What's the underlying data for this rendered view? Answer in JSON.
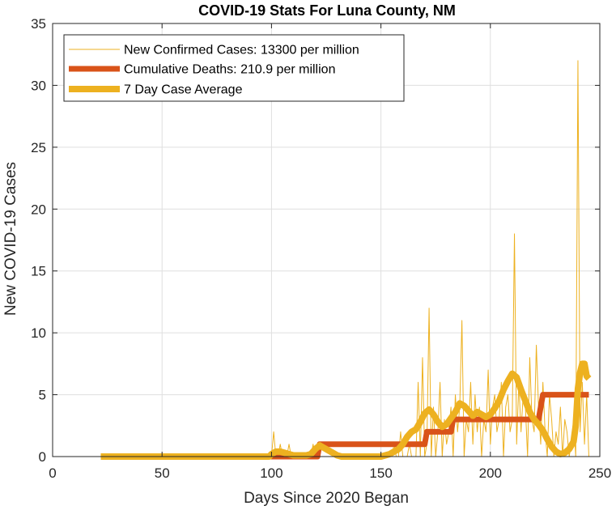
{
  "chart_data": {
    "type": "line",
    "title": "COVID-19 Stats For Luna County, NM",
    "xlabel": "Days Since 2020 Began",
    "ylabel": "New COVID-19 Cases",
    "xlim": [
      0,
      250
    ],
    "ylim": [
      0,
      35
    ],
    "xticks": [
      0,
      50,
      100,
      150,
      200,
      250
    ],
    "yticks": [
      0,
      5,
      10,
      15,
      20,
      25,
      30,
      35
    ],
    "grid": true,
    "legend_position": "top-left",
    "series": [
      {
        "name": "New Confirmed Cases: 13300 per million",
        "color": "#EDB120",
        "x": [
          22,
          30,
          40,
          50,
          60,
          70,
          80,
          90,
          99,
          100,
          101,
          102,
          103,
          104,
          105,
          106,
          107,
          108,
          109,
          110,
          111,
          112,
          113,
          114,
          115,
          116,
          117,
          118,
          119,
          120,
          121,
          122,
          123,
          124,
          125,
          126,
          127,
          128,
          129,
          130,
          131,
          132,
          133,
          134,
          135,
          136,
          137,
          138,
          139,
          140,
          141,
          142,
          143,
          144,
          145,
          146,
          147,
          148,
          149,
          150,
          151,
          152,
          153,
          154,
          155,
          156,
          157,
          158,
          159,
          160,
          161,
          162,
          163,
          164,
          165,
          166,
          167,
          168,
          169,
          170,
          171,
          172,
          173,
          174,
          175,
          176,
          177,
          178,
          179,
          180,
          181,
          182,
          183,
          184,
          185,
          186,
          187,
          188,
          189,
          190,
          191,
          192,
          193,
          194,
          195,
          196,
          197,
          198,
          199,
          200,
          201,
          202,
          203,
          204,
          205,
          206,
          207,
          208,
          209,
          210,
          211,
          212,
          213,
          214,
          215,
          216,
          217,
          218,
          219,
          220,
          221,
          222,
          223,
          224,
          225,
          226,
          227,
          228,
          229,
          230,
          231,
          232,
          233,
          234,
          235,
          236,
          237,
          238,
          239,
          240,
          241,
          242,
          243,
          244,
          245
        ],
        "y": [
          0,
          0,
          0,
          0,
          0,
          0,
          0,
          0,
          0,
          0,
          2,
          0,
          0,
          1,
          0,
          0,
          0,
          1,
          0,
          0,
          0,
          0,
          0,
          0,
          0,
          0,
          0,
          0,
          1,
          0,
          0,
          0,
          0,
          0,
          0,
          0,
          0,
          0,
          0,
          0,
          0,
          0,
          0,
          0,
          0,
          0,
          0,
          0,
          0,
          0,
          0,
          0,
          0,
          0,
          0,
          0,
          0,
          0,
          0,
          0,
          0,
          0,
          0,
          0,
          0,
          1,
          0,
          0,
          2,
          0,
          0,
          0,
          1,
          0,
          0,
          0,
          6,
          0,
          8,
          0,
          1,
          12,
          0,
          4,
          0,
          2,
          6,
          0,
          3,
          1,
          2,
          4,
          0,
          5,
          2,
          4,
          11,
          0,
          3,
          2,
          6,
          1,
          5,
          2,
          4,
          0,
          3,
          2,
          7,
          1,
          4,
          5,
          2,
          3,
          6,
          0,
          4,
          5,
          2,
          3,
          18,
          1,
          6,
          2,
          5,
          4,
          0,
          8,
          3,
          2,
          9,
          4,
          1,
          6,
          2,
          0,
          5,
          3,
          0,
          2,
          1,
          4,
          0,
          3,
          2,
          0,
          1,
          3,
          0,
          32,
          2,
          6,
          1,
          5,
          0
        ],
        "width": 1
      },
      {
        "name": "Cumulative Deaths: 210.9 per million",
        "color": "#D95319",
        "x": [
          22,
          118,
          121,
          122,
          168,
          170,
          171,
          181,
          182,
          183,
          184,
          220,
          222,
          224,
          245
        ],
        "y": [
          0,
          0,
          0,
          1,
          1,
          1,
          2,
          2,
          2,
          3,
          3,
          3,
          3,
          5,
          5
        ],
        "width": 7
      },
      {
        "name": "7 Day Case Average",
        "color": "#EDB120",
        "x": [
          22,
          30,
          40,
          50,
          60,
          70,
          80,
          90,
          99,
          100,
          102,
          104,
          106,
          108,
          110,
          112,
          114,
          116,
          118,
          120,
          122,
          124,
          126,
          128,
          130,
          132,
          134,
          136,
          138,
          140,
          142,
          144,
          146,
          148,
          150,
          152,
          154,
          156,
          158,
          160,
          162,
          164,
          166,
          168,
          170,
          172,
          174,
          176,
          178,
          180,
          182,
          184,
          186,
          188,
          190,
          192,
          194,
          196,
          198,
          200,
          202,
          204,
          206,
          208,
          210,
          212,
          214,
          216,
          218,
          220,
          222,
          224,
          226,
          228,
          230,
          232,
          234,
          236,
          238,
          239,
          240,
          241,
          242,
          243,
          244,
          245
        ],
        "y": [
          0,
          0,
          0,
          0,
          0,
          0,
          0,
          0,
          0,
          0.2,
          0.4,
          0.4,
          0.3,
          0.2,
          0.1,
          0.1,
          0.1,
          0.1,
          0.2,
          0.6,
          0.9,
          0.7,
          0.5,
          0.3,
          0.1,
          0,
          0,
          0,
          0,
          0,
          0,
          0,
          0,
          0,
          0,
          0.1,
          0.2,
          0.4,
          0.6,
          1.0,
          1.6,
          2.0,
          2.2,
          2.8,
          3.5,
          3.8,
          3.4,
          2.8,
          2.4,
          2.6,
          3.1,
          3.6,
          4.3,
          4.1,
          3.7,
          3.3,
          3.6,
          3.4,
          3.2,
          3.4,
          3.9,
          4.5,
          5.4,
          6.1,
          6.7,
          6.4,
          5.4,
          4.5,
          3.6,
          3.0,
          2.6,
          2.1,
          1.4,
          0.8,
          0.4,
          0.2,
          0.3,
          0.6,
          1.2,
          2.5,
          5.5,
          6.8,
          7.5,
          7.5,
          6.5,
          6.3
        ],
        "width": 8
      }
    ]
  }
}
